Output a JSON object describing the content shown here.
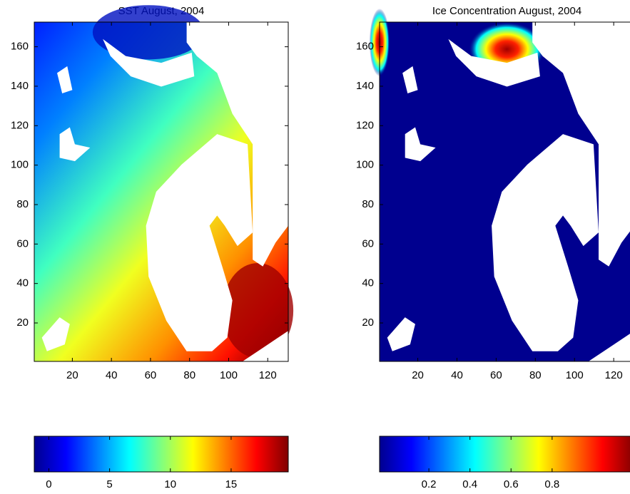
{
  "chart_data": [
    {
      "type": "heatmap",
      "title": "SST August, 2004",
      "colormap": "jet",
      "xlim": [
        0.5,
        130.5
      ],
      "ylim": [
        0.5,
        172.5
      ],
      "xticks": [
        20,
        40,
        60,
        80,
        100,
        120
      ],
      "yticks": [
        20,
        40,
        60,
        80,
        100,
        120,
        140,
        160
      ],
      "colorbar": {
        "clim": [
          -1.2,
          19.7
        ],
        "ticks": [
          0,
          5,
          10,
          15
        ]
      }
    },
    {
      "type": "heatmap",
      "title": "Ice Concentration August, 2004",
      "colormap": "jet",
      "xlim": [
        0.5,
        130.5
      ],
      "ylim": [
        0.5,
        172.5
      ],
      "xticks": [
        20,
        40,
        60,
        80,
        100,
        120
      ],
      "yticks": [
        20,
        40,
        60,
        80,
        100,
        120,
        140,
        160
      ],
      "colorbar": {
        "clim": [
          -0.04,
          1.2
        ],
        "ticks": [
          0.2,
          0.4,
          0.6,
          0.8
        ]
      }
    }
  ]
}
